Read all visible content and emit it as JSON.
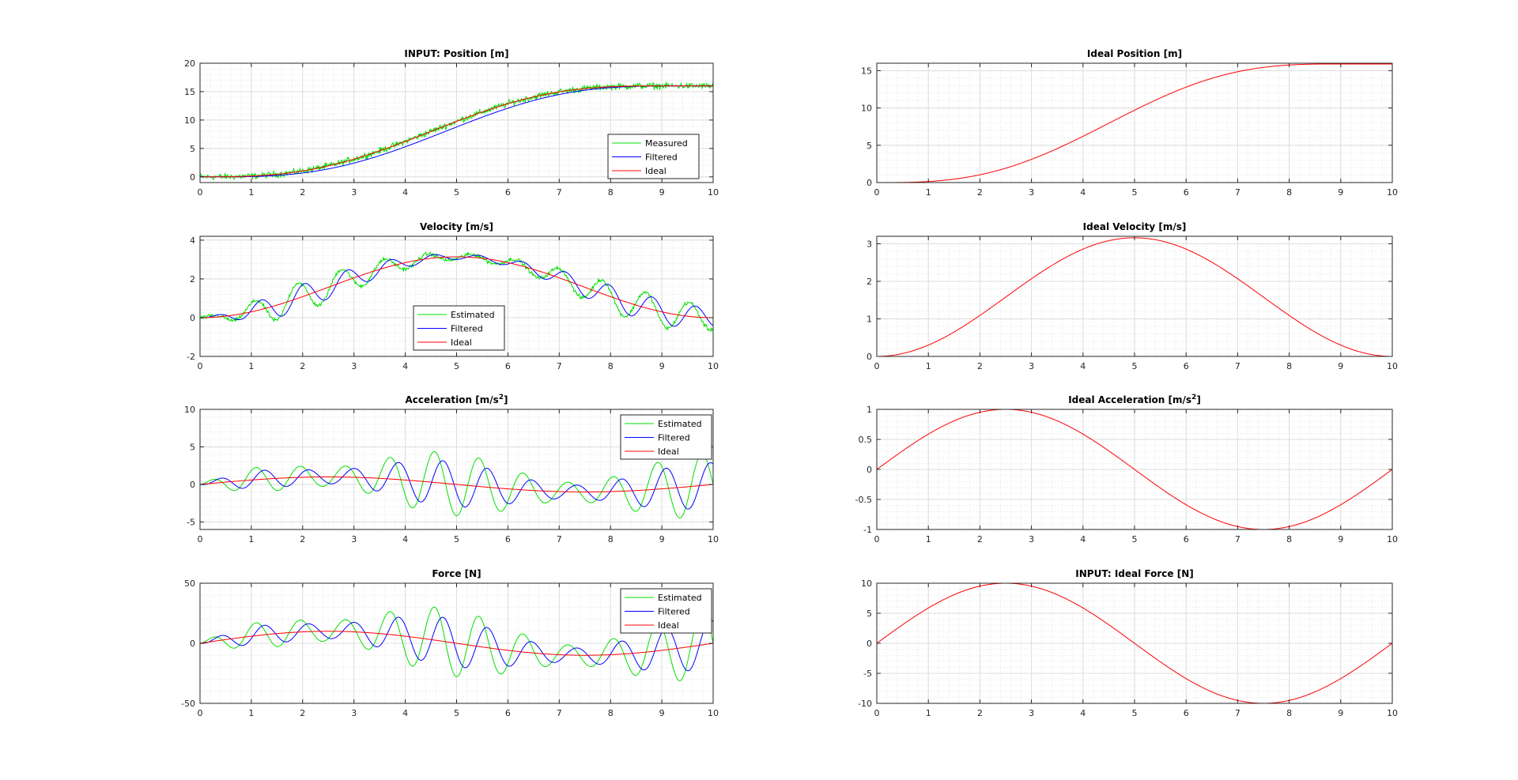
{
  "colors": {
    "measured": "#00e000",
    "filtered": "#0000ff",
    "ideal": "#ff0000",
    "axis": "#262626",
    "grid": "#dcdcdc"
  },
  "chart_data": [
    {
      "id": "position",
      "type": "line",
      "title": "INPUT: Position [m]",
      "title_sup": "",
      "xlim": [
        0,
        10
      ],
      "ylim": [
        -1,
        20
      ],
      "xticks": [
        0,
        1,
        2,
        3,
        4,
        5,
        6,
        7,
        8,
        9,
        10
      ],
      "yticks": [
        0,
        5,
        10,
        15,
        20
      ],
      "grid": true,
      "legend": {
        "placement": "inside-right",
        "labels": [
          "Measured",
          "Filtered",
          "Ideal"
        ]
      },
      "series": [
        {
          "name": "Measured",
          "kind": "position",
          "role": "measured",
          "noise": 0.7
        },
        {
          "name": "Filtered",
          "kind": "position",
          "role": "filtered",
          "lag": 0.28
        },
        {
          "name": "Ideal",
          "kind": "position",
          "role": "ideal",
          "plateau": 16
        }
      ]
    },
    {
      "id": "velocity",
      "type": "line",
      "title": "Velocity [m/s]",
      "title_sup": "",
      "xlim": [
        0,
        10
      ],
      "ylim": [
        -2,
        4.2
      ],
      "xticks": [
        0,
        1,
        2,
        3,
        4,
        5,
        6,
        7,
        8,
        9,
        10
      ],
      "yticks": [
        -2,
        0,
        2,
        4
      ],
      "grid": true,
      "legend": {
        "placement": "inside-bottom-center",
        "labels": [
          "Estimated",
          "Filtered",
          "Ideal"
        ]
      },
      "series": [
        {
          "name": "Estimated",
          "kind": "velocity",
          "role": "estimated",
          "amp": 0.8,
          "noise": 0.12
        },
        {
          "name": "Filtered",
          "kind": "velocity",
          "role": "filtered",
          "amp": 0.65
        },
        {
          "name": "Ideal",
          "kind": "velocity",
          "role": "ideal",
          "peak": 3.14
        }
      ]
    },
    {
      "id": "acceleration",
      "type": "line",
      "title": "Acceleration [m/s",
      "title_sup": "2",
      "title_end": "]",
      "xlim": [
        0,
        10
      ],
      "ylim": [
        -6,
        10
      ],
      "xticks": [
        0,
        1,
        2,
        3,
        4,
        5,
        6,
        7,
        8,
        9,
        10
      ],
      "yticks": [
        -5,
        0,
        5,
        10
      ],
      "grid": true,
      "legend": {
        "placement": "inside-top-right",
        "labels": [
          "Estimated",
          "Filtered",
          "Ideal"
        ]
      },
      "series": [
        {
          "name": "Estimated",
          "kind": "accel",
          "role": "estimated",
          "amp": 4.2
        },
        {
          "name": "Filtered",
          "kind": "accel",
          "role": "filtered",
          "amp": 3.0
        },
        {
          "name": "Ideal",
          "kind": "accel",
          "role": "ideal",
          "peak": 1
        }
      ]
    },
    {
      "id": "force",
      "type": "line",
      "title": "Force [N]",
      "title_sup": "",
      "xlim": [
        0,
        10
      ],
      "ylim": [
        -50,
        50
      ],
      "xticks": [
        0,
        1,
        2,
        3,
        4,
        5,
        6,
        7,
        8,
        9,
        10
      ],
      "yticks": [
        -50,
        0,
        50
      ],
      "grid": true,
      "legend": {
        "placement": "inside-top-right",
        "labels": [
          "Estimated",
          "Filtered",
          "Ideal"
        ]
      },
      "series": [
        {
          "name": "Estimated",
          "kind": "accel",
          "role": "estimated",
          "amp": 28,
          "scale": 10
        },
        {
          "name": "Filtered",
          "kind": "accel",
          "role": "filtered",
          "amp": 20,
          "scale": 10
        },
        {
          "name": "Ideal",
          "kind": "accel",
          "role": "ideal",
          "peak": 10
        }
      ]
    },
    {
      "id": "ideal-position",
      "type": "line",
      "title": "Ideal Position [m]",
      "title_sup": "",
      "xlim": [
        0,
        10
      ],
      "ylim": [
        0,
        16
      ],
      "xticks": [
        0,
        1,
        2,
        3,
        4,
        5,
        6,
        7,
        8,
        9,
        10
      ],
      "yticks": [
        0,
        5,
        10,
        15
      ],
      "grid": true,
      "legend": null,
      "series": [
        {
          "name": "Ideal",
          "kind": "position",
          "role": "ideal",
          "plateau": 15.9
        }
      ]
    },
    {
      "id": "ideal-velocity",
      "type": "line",
      "title": "Ideal Velocity [m/s]",
      "title_sup": "",
      "xlim": [
        0,
        10
      ],
      "ylim": [
        0,
        3.2
      ],
      "xticks": [
        0,
        1,
        2,
        3,
        4,
        5,
        6,
        7,
        8,
        9,
        10
      ],
      "yticks": [
        0,
        1,
        2,
        3
      ],
      "grid": true,
      "legend": null,
      "series": [
        {
          "name": "Ideal",
          "kind": "velocity",
          "role": "ideal",
          "peak": 3.16
        }
      ]
    },
    {
      "id": "ideal-acceleration",
      "type": "line",
      "title": "Ideal Acceleration [m/s",
      "title_sup": "2",
      "title_end": "]",
      "xlim": [
        0,
        10
      ],
      "ylim": [
        -1,
        1
      ],
      "xticks": [
        0,
        1,
        2,
        3,
        4,
        5,
        6,
        7,
        8,
        9,
        10
      ],
      "yticks": [
        -1,
        -0.5,
        0,
        0.5,
        1
      ],
      "grid": true,
      "legend": null,
      "series": [
        {
          "name": "Ideal",
          "kind": "accel",
          "role": "ideal",
          "peak": 1
        }
      ]
    },
    {
      "id": "ideal-force",
      "type": "line",
      "title": "INPUT: Ideal Force [N]",
      "title_sup": "",
      "xlim": [
        0,
        10
      ],
      "ylim": [
        -10,
        10
      ],
      "xticks": [
        0,
        1,
        2,
        3,
        4,
        5,
        6,
        7,
        8,
        9,
        10
      ],
      "yticks": [
        -10,
        -5,
        0,
        5,
        10
      ],
      "grid": true,
      "legend": null,
      "series": [
        {
          "name": "Ideal",
          "kind": "accel",
          "role": "ideal",
          "peak": 10
        }
      ]
    }
  ]
}
